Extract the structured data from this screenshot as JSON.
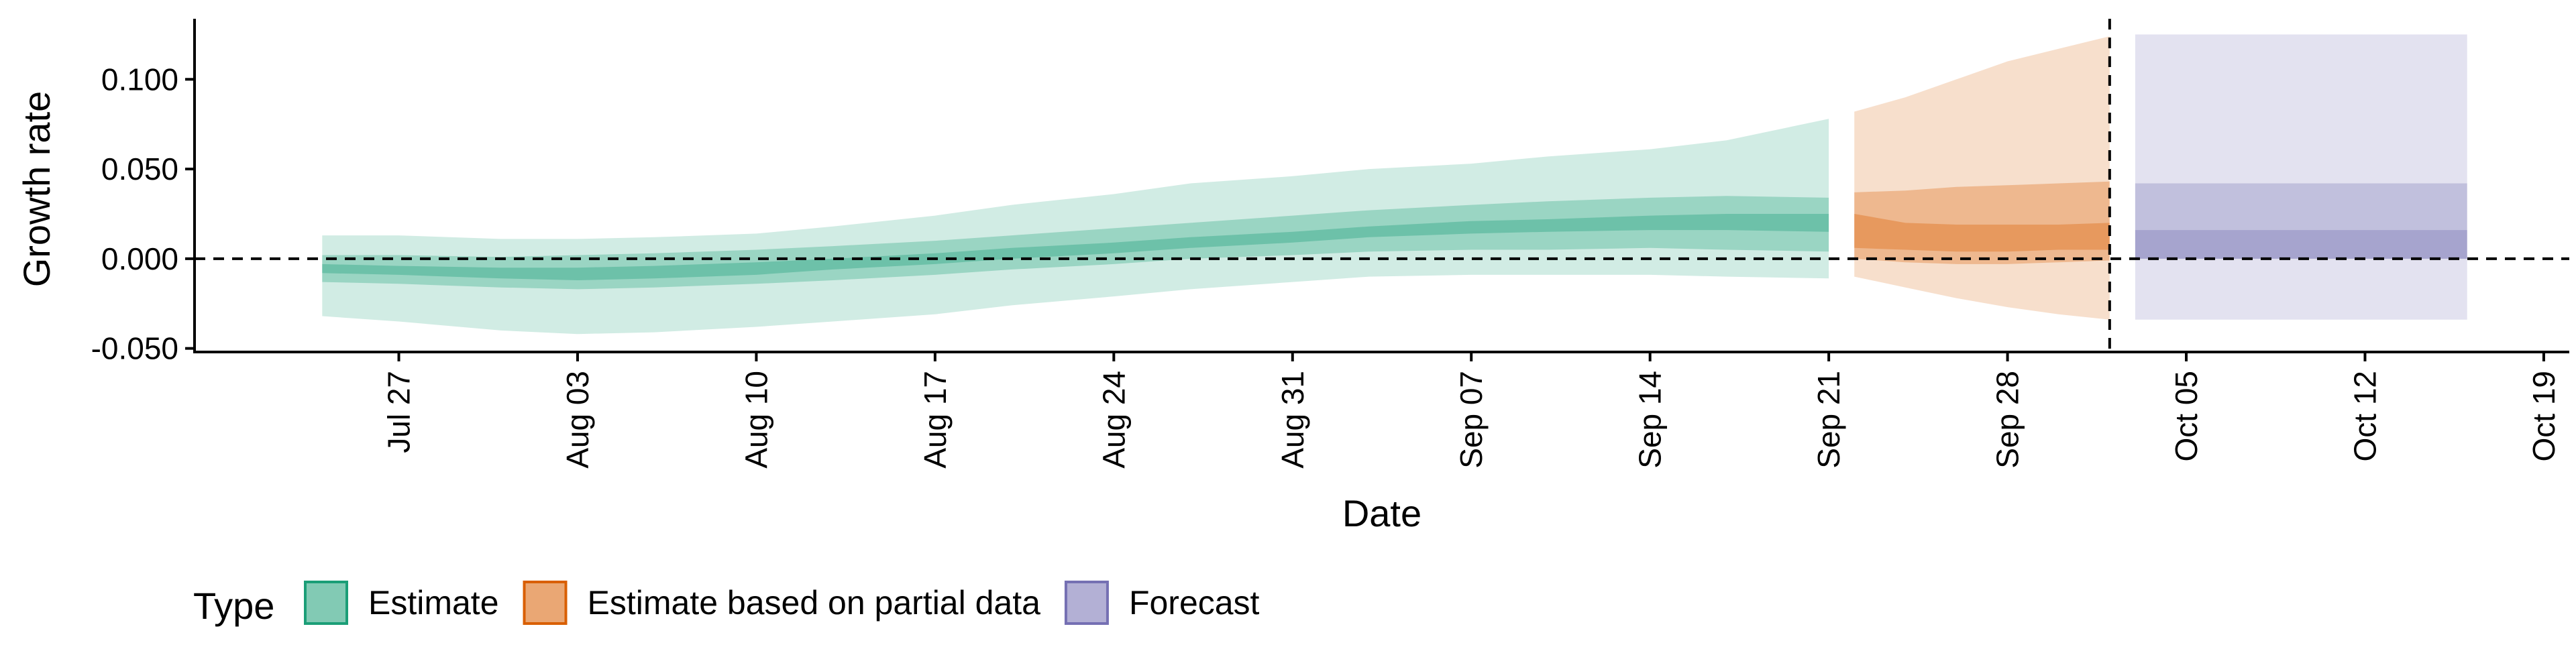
{
  "chart_data": {
    "type": "area",
    "xlabel": "Date",
    "ylabel": "Growth rate",
    "x_axis": {
      "ticks": [
        "2020-07-27",
        "2020-08-03",
        "2020-08-10",
        "2020-08-17",
        "2020-08-24",
        "2020-08-31",
        "2020-09-07",
        "2020-09-14",
        "2020-09-21",
        "2020-09-28",
        "2020-10-05",
        "2020-10-12",
        "2020-10-19"
      ],
      "tick_labels": [
        "Jul 27",
        "Aug 03",
        "Aug 10",
        "Aug 17",
        "Aug 24",
        "Aug 31",
        "Sep 07",
        "Sep 14",
        "Sep 21",
        "Sep 28",
        "Oct 05",
        "Oct 12",
        "Oct 19"
      ],
      "range": [
        "2020-07-19",
        "2020-10-20"
      ]
    },
    "y_axis": {
      "ticks": [
        -0.05,
        0.0,
        0.05,
        0.1
      ],
      "tick_labels": [
        "-0.050",
        "0.000",
        "0.050",
        "0.100"
      ],
      "range": [
        -0.052,
        0.133
      ]
    },
    "reference_lines": {
      "horizontal_y": 0.0,
      "vertical_date": "2020-10-02",
      "style": "dashed"
    },
    "grid": false,
    "legend": {
      "title": "Type",
      "placement": "bottom-left",
      "entries": [
        {
          "label": "Estimate",
          "color": "#1b9e77"
        },
        {
          "label": "Estimate based on partial data",
          "color": "#d95f02"
        },
        {
          "label": "Forecast",
          "color": "#7570b3"
        }
      ]
    },
    "series": [
      {
        "name": "Estimate",
        "color": "#1b9e77",
        "x": [
          "2020-07-24",
          "2020-07-27",
          "2020-07-31",
          "2020-08-03",
          "2020-08-06",
          "2020-08-10",
          "2020-08-13",
          "2020-08-17",
          "2020-08-20",
          "2020-08-24",
          "2020-08-27",
          "2020-08-31",
          "2020-09-03",
          "2020-09-07",
          "2020-09-10",
          "2020-09-14",
          "2020-09-17",
          "2020-09-21"
        ],
        "ci90_lower": [
          -0.032,
          -0.035,
          -0.04,
          -0.042,
          -0.041,
          -0.038,
          -0.035,
          -0.031,
          -0.026,
          -0.021,
          -0.017,
          -0.013,
          -0.01,
          -0.009,
          -0.009,
          -0.009,
          -0.01,
          -0.011
        ],
        "ci90_upper": [
          0.013,
          0.013,
          0.011,
          0.011,
          0.012,
          0.014,
          0.018,
          0.024,
          0.03,
          0.036,
          0.042,
          0.046,
          0.05,
          0.053,
          0.057,
          0.061,
          0.066,
          0.078
        ],
        "ci50_lower": [
          -0.013,
          -0.014,
          -0.016,
          -0.017,
          -0.016,
          -0.014,
          -0.012,
          -0.009,
          -0.006,
          -0.003,
          0.0,
          0.002,
          0.004,
          0.005,
          0.005,
          0.006,
          0.005,
          0.004
        ],
        "ci50_upper": [
          0.002,
          0.002,
          0.001,
          0.002,
          0.003,
          0.005,
          0.007,
          0.01,
          0.013,
          0.017,
          0.02,
          0.024,
          0.027,
          0.03,
          0.032,
          0.034,
          0.035,
          0.034
        ],
        "ci20_lower": [
          -0.008,
          -0.009,
          -0.011,
          -0.012,
          -0.011,
          -0.009,
          -0.006,
          -0.003,
          0.0,
          0.003,
          0.006,
          0.009,
          0.012,
          0.014,
          0.015,
          0.016,
          0.016,
          0.015
        ],
        "ci20_upper": [
          -0.003,
          -0.004,
          -0.005,
          -0.005,
          -0.004,
          -0.002,
          0.0,
          0.003,
          0.006,
          0.009,
          0.012,
          0.015,
          0.018,
          0.021,
          0.022,
          0.024,
          0.025,
          0.025
        ]
      },
      {
        "name": "Estimate based on partial data",
        "color": "#d95f02",
        "x": [
          "2020-09-22",
          "2020-09-24",
          "2020-09-26",
          "2020-09-28",
          "2020-09-30",
          "2020-10-02"
        ],
        "ci90_lower": [
          -0.01,
          -0.016,
          -0.022,
          -0.027,
          -0.031,
          -0.034
        ],
        "ci90_upper": [
          0.082,
          0.09,
          0.1,
          0.11,
          0.117,
          0.124
        ],
        "ci50_lower": [
          0.0,
          -0.002,
          -0.003,
          -0.003,
          -0.002,
          -0.001
        ],
        "ci50_upper": [
          0.037,
          0.038,
          0.04,
          0.041,
          0.042,
          0.043
        ],
        "ci20_lower": [
          0.006,
          0.005,
          0.004,
          0.004,
          0.005,
          0.005
        ],
        "ci20_upper": [
          0.025,
          0.02,
          0.019,
          0.019,
          0.019,
          0.02
        ]
      },
      {
        "name": "Forecast",
        "color": "#7570b3",
        "x": [
          "2020-10-03",
          "2020-10-16"
        ],
        "ci90_lower": [
          -0.034,
          -0.034
        ],
        "ci90_upper": [
          0.125,
          0.125
        ],
        "ci50_lower": [
          0.0,
          0.0
        ],
        "ci50_upper": [
          0.042,
          0.042
        ],
        "ci20_lower": [
          0.0,
          0.0
        ],
        "ci20_upper": [
          0.016,
          0.016
        ]
      }
    ]
  }
}
